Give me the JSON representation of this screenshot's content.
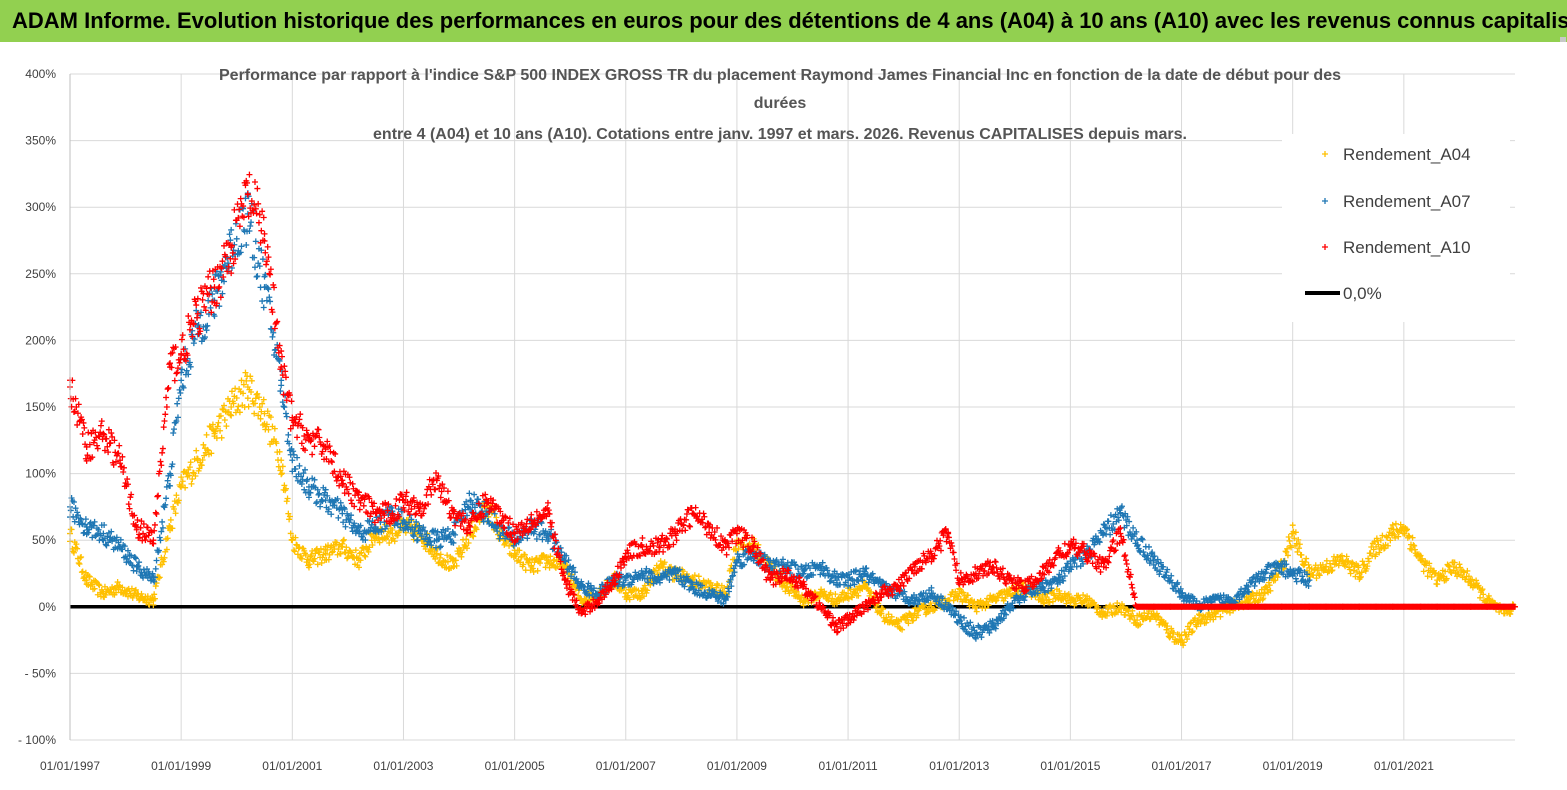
{
  "header": {
    "title": "ADAM Informe. Evolution historique des performances en euros pour des détentions de 4 ans (A04) à 10 ans (A10) avec les revenus connus capitalisés",
    "background": "#92d050"
  },
  "chart_data": {
    "type": "scatter",
    "title_lines": [
      "Performance par rapport à l'indice S&P 500 INDEX GROSS TR  du placement Raymond James Financial Inc en fonction de la date de début pour des",
      "durées",
      "entre 4 (A04) et 10 ans (A10).  Cotations entre janv. 1997 et mars. 2026. Revenus CAPITALISES depuis mars."
    ],
    "xlabel": "",
    "ylabel": "",
    "xlim": [
      1997.0,
      2023.0
    ],
    "ylim": [
      -100,
      400
    ],
    "y_ticks": [
      -100,
      -50,
      0,
      50,
      100,
      150,
      200,
      250,
      300,
      350,
      400
    ],
    "y_tick_labels": [
      "- 100%",
      "- 50%",
      "0%",
      "50%",
      "100%",
      "150%",
      "200%",
      "250%",
      "300%",
      "350%",
      "400%"
    ],
    "x_ticks": [
      1997,
      1999,
      2001,
      2003,
      2005,
      2007,
      2009,
      2011,
      2013,
      2015,
      2017,
      2019,
      2021
    ],
    "x_tick_labels": [
      "01/01/1997",
      "01/01/1999",
      "01/01/2001",
      "01/01/2003",
      "01/01/2005",
      "01/01/2007",
      "01/01/2009",
      "01/01/2011",
      "01/01/2013",
      "01/01/2015",
      "01/01/2017",
      "01/01/2019",
      "01/01/2021"
    ],
    "grid": true,
    "legend_position": "top-right",
    "series": [
      {
        "name": "Rendement_A04",
        "color": "#ffc000",
        "marker": "+",
        "x": [
          1997.0,
          1997.3,
          1997.6,
          1997.9,
          1998.2,
          1998.5,
          1998.8,
          1999.0,
          1999.3,
          1999.6,
          1999.9,
          2000.2,
          2000.5,
          2000.8,
          2001.0,
          2001.3,
          2001.6,
          2001.9,
          2002.2,
          2002.5,
          2002.8,
          2003.0,
          2003.3,
          2003.6,
          2003.9,
          2004.2,
          2004.5,
          2004.8,
          2005.0,
          2005.3,
          2005.6,
          2005.9,
          2006.2,
          2006.5,
          2006.8,
          2007.0,
          2007.3,
          2007.6,
          2007.9,
          2008.2,
          2008.5,
          2008.8,
          2009.0,
          2009.3,
          2009.6,
          2009.9,
          2010.2,
          2010.5,
          2010.8,
          2011.0,
          2011.3,
          2011.6,
          2011.9,
          2012.2,
          2012.5,
          2012.8,
          2013.0,
          2013.3,
          2013.6,
          2013.9,
          2014.2,
          2014.5,
          2014.8,
          2015.0,
          2015.3,
          2015.6,
          2015.9,
          2016.2,
          2016.5,
          2016.8,
          2017.0,
          2017.3,
          2017.6,
          2017.9,
          2018.2,
          2018.5,
          2018.8,
          2019.0,
          2019.3,
          2019.6,
          2019.9,
          2020.2,
          2020.5,
          2020.8,
          2021.0,
          2021.3,
          2021.6,
          2021.9,
          2022.2,
          2022.5,
          2022.8,
          2023.0
        ],
        "y": [
          55,
          20,
          10,
          15,
          8,
          5,
          60,
          90,
          110,
          130,
          150,
          165,
          145,
          110,
          50,
          35,
          40,
          45,
          35,
          55,
          55,
          60,
          55,
          40,
          30,
          55,
          75,
          50,
          40,
          30,
          35,
          30,
          5,
          10,
          20,
          10,
          10,
          30,
          25,
          20,
          15,
          10,
          50,
          45,
          30,
          15,
          5,
          10,
          5,
          10,
          15,
          -5,
          -15,
          -5,
          0,
          5,
          10,
          0,
          5,
          10,
          15,
          5,
          10,
          5,
          5,
          -5,
          0,
          -10,
          -5,
          -20,
          -25,
          -10,
          -5,
          0,
          5,
          10,
          30,
          55,
          25,
          30,
          35,
          25,
          45,
          55,
          60,
          35,
          20,
          30,
          20,
          5,
          -5,
          0
        ]
      },
      {
        "name": "Rendement_A07",
        "color": "#1f77b4",
        "marker": "+",
        "x": [
          1997.0,
          1997.3,
          1997.6,
          1997.9,
          1998.2,
          1998.5,
          1998.8,
          1999.0,
          1999.3,
          1999.6,
          1999.9,
          2000.2,
          2000.5,
          2000.8,
          2001.0,
          2001.3,
          2001.6,
          2001.9,
          2002.2,
          2002.5,
          2002.8,
          2003.0,
          2003.3,
          2003.6,
          2003.9,
          2004.2,
          2004.5,
          2004.8,
          2005.0,
          2005.3,
          2005.6,
          2005.9,
          2006.2,
          2006.5,
          2006.8,
          2007.0,
          2007.3,
          2007.6,
          2007.9,
          2008.2,
          2008.5,
          2008.8,
          2009.0,
          2009.3,
          2009.6,
          2009.9,
          2010.2,
          2010.5,
          2010.8,
          2011.0,
          2011.3,
          2011.6,
          2011.9,
          2012.2,
          2012.5,
          2012.8,
          2013.0,
          2013.3,
          2013.6,
          2013.9,
          2014.2,
          2014.5,
          2014.8,
          2015.0,
          2015.3,
          2015.6,
          2015.9,
          2016.2,
          2016.5,
          2016.8,
          2017.0,
          2017.3,
          2017.6,
          2017.9,
          2018.2,
          2018.5,
          2018.8,
          2019.0,
          2019.3
        ],
        "y": [
          75,
          60,
          55,
          45,
          30,
          20,
          100,
          170,
          210,
          230,
          270,
          295,
          240,
          170,
          110,
          90,
          80,
          70,
          55,
          60,
          70,
          65,
          55,
          50,
          55,
          80,
          70,
          55,
          50,
          60,
          55,
          35,
          15,
          10,
          20,
          20,
          25,
          20,
          25,
          15,
          10,
          5,
          35,
          40,
          30,
          30,
          25,
          30,
          20,
          20,
          25,
          15,
          10,
          5,
          10,
          0,
          -10,
          -20,
          -15,
          0,
          10,
          15,
          20,
          30,
          40,
          55,
          70,
          50,
          35,
          20,
          10,
          0,
          5,
          5,
          15,
          25,
          30,
          25,
          20
        ]
      },
      {
        "name": "Rendement_A10",
        "color": "#ff0000",
        "marker": "+",
        "x": [
          1997.0,
          1997.3,
          1997.6,
          1997.9,
          1998.2,
          1998.5,
          1998.8,
          1999.0,
          1999.3,
          1999.6,
          1999.9,
          2000.2,
          2000.5,
          2000.8,
          2001.0,
          2001.3,
          2001.6,
          2001.9,
          2002.2,
          2002.5,
          2002.8,
          2003.0,
          2003.3,
          2003.6,
          2003.9,
          2004.2,
          2004.5,
          2004.8,
          2005.0,
          2005.3,
          2005.6,
          2005.9,
          2006.2,
          2006.5,
          2006.8,
          2007.0,
          2007.3,
          2007.6,
          2007.9,
          2008.2,
          2008.5,
          2008.8,
          2009.0,
          2009.3,
          2009.6,
          2009.9,
          2010.2,
          2010.5,
          2010.8,
          2011.0,
          2011.3,
          2011.6,
          2011.9,
          2012.2,
          2012.5,
          2012.8,
          2013.0,
          2013.3,
          2013.6,
          2013.9,
          2014.2,
          2014.5,
          2014.8,
          2015.0,
          2015.3,
          2015.6,
          2015.9,
          2016.2,
          2016.5,
          2016.8,
          2017.0,
          2017.3,
          2017.6,
          2017.9,
          2018.2,
          2018.5,
          2018.8,
          2019.0,
          2019.3,
          2019.6,
          2019.9,
          2020.2,
          2020.5,
          2020.8,
          2021.0,
          2021.3,
          2021.6,
          2021.9,
          2022.2,
          2022.5,
          2022.8,
          2023.0
        ],
        "y": [
          165,
          120,
          130,
          110,
          60,
          50,
          180,
          190,
          220,
          240,
          270,
          310,
          280,
          180,
          140,
          125,
          120,
          95,
          80,
          70,
          70,
          80,
          75,
          95,
          70,
          60,
          80,
          65,
          55,
          65,
          70,
          20,
          -5,
          5,
          20,
          40,
          45,
          45,
          55,
          70,
          60,
          45,
          55,
          45,
          20,
          25,
          15,
          0,
          -15,
          -10,
          0,
          10,
          15,
          30,
          40,
          55,
          20,
          25,
          30,
          20,
          15,
          25,
          40,
          45,
          40,
          30,
          55,
          0,
          0,
          0,
          0,
          0,
          0,
          0,
          0,
          0,
          0,
          0,
          0,
          0,
          0,
          0,
          0,
          0,
          0,
          0,
          0,
          0,
          0,
          0,
          0,
          0
        ]
      }
    ],
    "reference_line": {
      "name": "0,0%",
      "value": 0,
      "color": "#000000"
    }
  }
}
